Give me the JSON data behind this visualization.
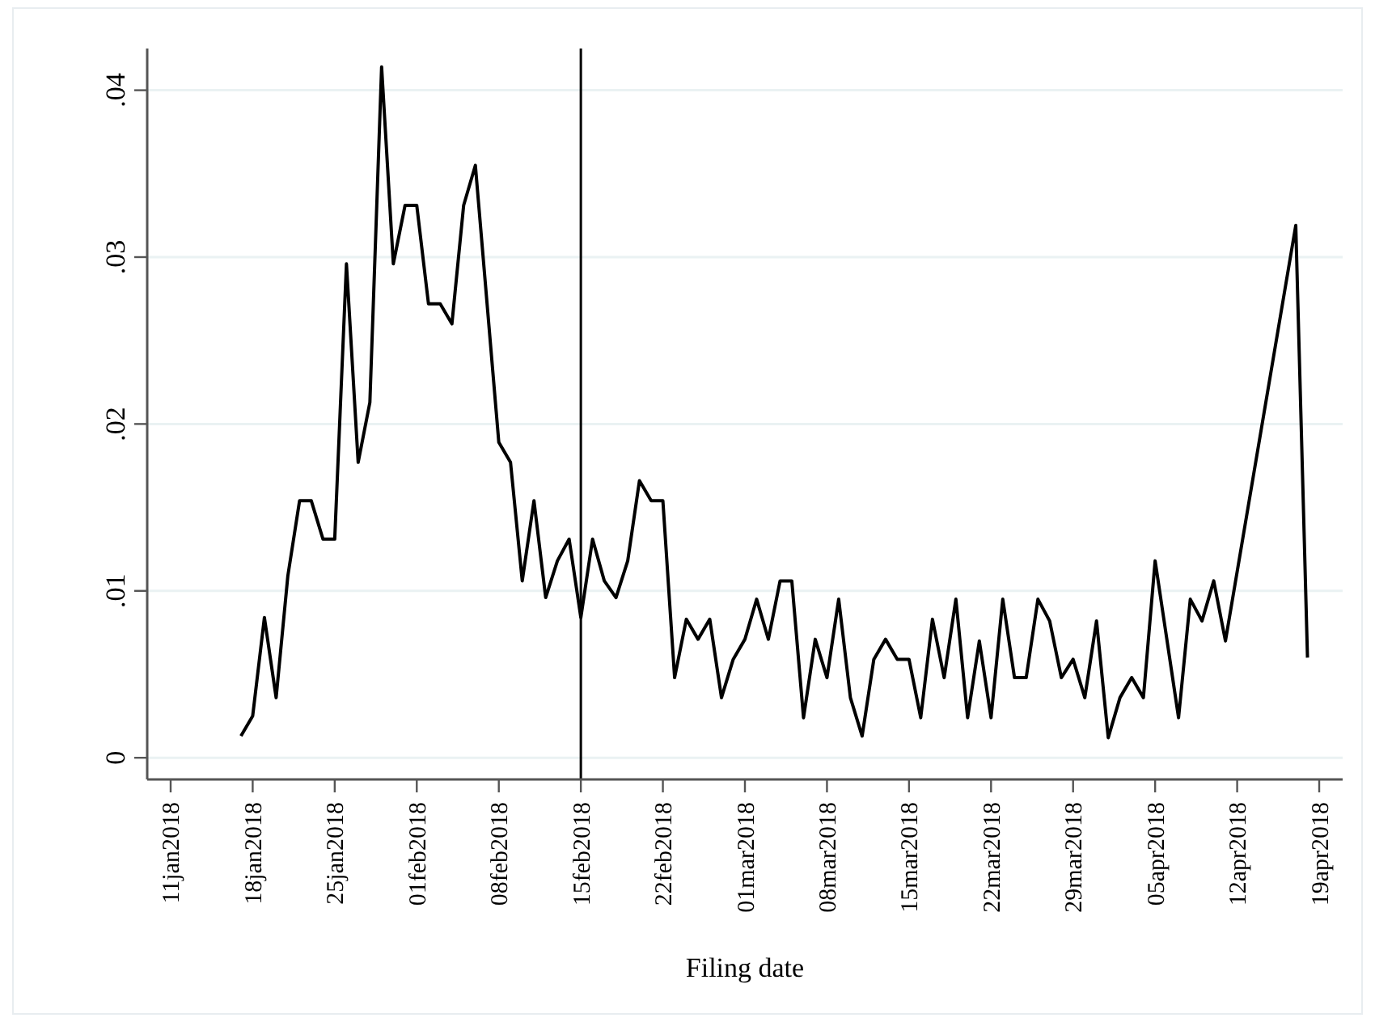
{
  "chart_data": {
    "type": "line",
    "xlabel": "Filing date",
    "x": [
      "2018-01-17",
      "2018-01-18",
      "2018-01-19",
      "2018-01-20",
      "2018-01-21",
      "2018-01-22",
      "2018-01-23",
      "2018-01-24",
      "2018-01-25",
      "2018-01-26",
      "2018-01-27",
      "2018-01-28",
      "2018-01-29",
      "2018-01-30",
      "2018-01-31",
      "2018-02-01",
      "2018-02-02",
      "2018-02-03",
      "2018-02-04",
      "2018-02-05",
      "2018-02-06",
      "2018-02-08",
      "2018-02-09",
      "2018-02-10",
      "2018-02-11",
      "2018-02-12",
      "2018-02-13",
      "2018-02-14",
      "2018-02-15",
      "2018-02-16",
      "2018-02-17",
      "2018-02-18",
      "2018-02-19",
      "2018-02-20",
      "2018-02-21",
      "2018-02-22",
      "2018-02-23",
      "2018-02-24",
      "2018-02-25",
      "2018-02-26",
      "2018-02-27",
      "2018-02-28",
      "2018-03-01",
      "2018-03-02",
      "2018-03-03",
      "2018-03-04",
      "2018-03-05",
      "2018-03-06",
      "2018-03-07",
      "2018-03-08",
      "2018-03-09",
      "2018-03-10",
      "2018-03-11",
      "2018-03-12",
      "2018-03-13",
      "2018-03-14",
      "2018-03-15",
      "2018-03-16",
      "2018-03-17",
      "2018-03-18",
      "2018-03-19",
      "2018-03-20",
      "2018-03-21",
      "2018-03-22",
      "2018-03-23",
      "2018-03-24",
      "2018-03-25",
      "2018-03-26",
      "2018-03-27",
      "2018-03-28",
      "2018-03-29",
      "2018-03-30",
      "2018-03-31",
      "2018-04-01",
      "2018-04-02",
      "2018-04-03",
      "2018-04-04",
      "2018-04-05",
      "2018-04-07",
      "2018-04-08",
      "2018-04-09",
      "2018-04-10",
      "2018-04-11",
      "2018-04-17",
      "2018-04-18"
    ],
    "series": [
      {
        "color": "#000000",
        "values": [
          0.0013,
          0.0025,
          0.0084,
          0.0036,
          0.0109,
          0.0154,
          0.0154,
          0.0131,
          0.0131,
          0.0296,
          0.0177,
          0.0213,
          0.0414,
          0.0296,
          0.0331,
          0.0331,
          0.0272,
          0.0272,
          0.026,
          0.0331,
          0.0355,
          0.0189,
          0.0177,
          0.0106,
          0.0154,
          0.0096,
          0.0118,
          0.0131,
          0.0084,
          0.0131,
          0.0106,
          0.0096,
          0.0118,
          0.0166,
          0.0154,
          0.0154,
          0.0048,
          0.0083,
          0.0071,
          0.0083,
          0.0036,
          0.0059,
          0.0071,
          0.0095,
          0.0071,
          0.0106,
          0.0106,
          0.0024,
          0.0071,
          0.0048,
          0.0095,
          0.0036,
          0.0013,
          0.0059,
          0.0071,
          0.0059,
          0.0059,
          0.0024,
          0.0083,
          0.0048,
          0.0095,
          0.0024,
          0.007,
          0.0024,
          0.0095,
          0.0048,
          0.0048,
          0.0095,
          0.0082,
          0.0048,
          0.0059,
          0.0036,
          0.0082,
          0.0012,
          0.0036,
          0.0048,
          0.0036,
          0.0118,
          0.0024,
          0.0095,
          0.0082,
          0.0106,
          0.007,
          0.0319,
          0.006
        ]
      }
    ],
    "xlim": [
      "2018-01-09",
      "2018-04-21"
    ],
    "xticks": [
      {
        "value": "2018-01-11",
        "label": "11jan2018"
      },
      {
        "value": "2018-01-18",
        "label": "18jan2018"
      },
      {
        "value": "2018-01-25",
        "label": "25jan2018"
      },
      {
        "value": "2018-02-01",
        "label": "01feb2018"
      },
      {
        "value": "2018-02-08",
        "label": "08feb2018"
      },
      {
        "value": "2018-02-15",
        "label": "15feb2018"
      },
      {
        "value": "2018-02-22",
        "label": "22feb2018"
      },
      {
        "value": "2018-03-01",
        "label": "01mar2018"
      },
      {
        "value": "2018-03-08",
        "label": "08mar2018"
      },
      {
        "value": "2018-03-15",
        "label": "15mar2018"
      },
      {
        "value": "2018-03-22",
        "label": "22mar2018"
      },
      {
        "value": "2018-03-29",
        "label": "29mar2018"
      },
      {
        "value": "2018-04-05",
        "label": "05apr2018"
      },
      {
        "value": "2018-04-12",
        "label": "12apr2018"
      },
      {
        "value": "2018-04-19",
        "label": "19apr2018"
      }
    ],
    "ylim": [
      -0.0013,
      0.0425
    ],
    "yticks": [
      0,
      {
        "value": 0.01,
        "label": ".01"
      },
      {
        "value": 0.02,
        "label": ".02"
      },
      {
        "value": 0.03,
        "label": ".03"
      },
      {
        "value": 0.04,
        "label": ".04"
      }
    ],
    "grid": "y",
    "marker": "none",
    "line_style": "solid",
    "ref_lines": [
      {
        "axis": "x",
        "value": "2018-02-15",
        "color": "#000000"
      }
    ]
  }
}
